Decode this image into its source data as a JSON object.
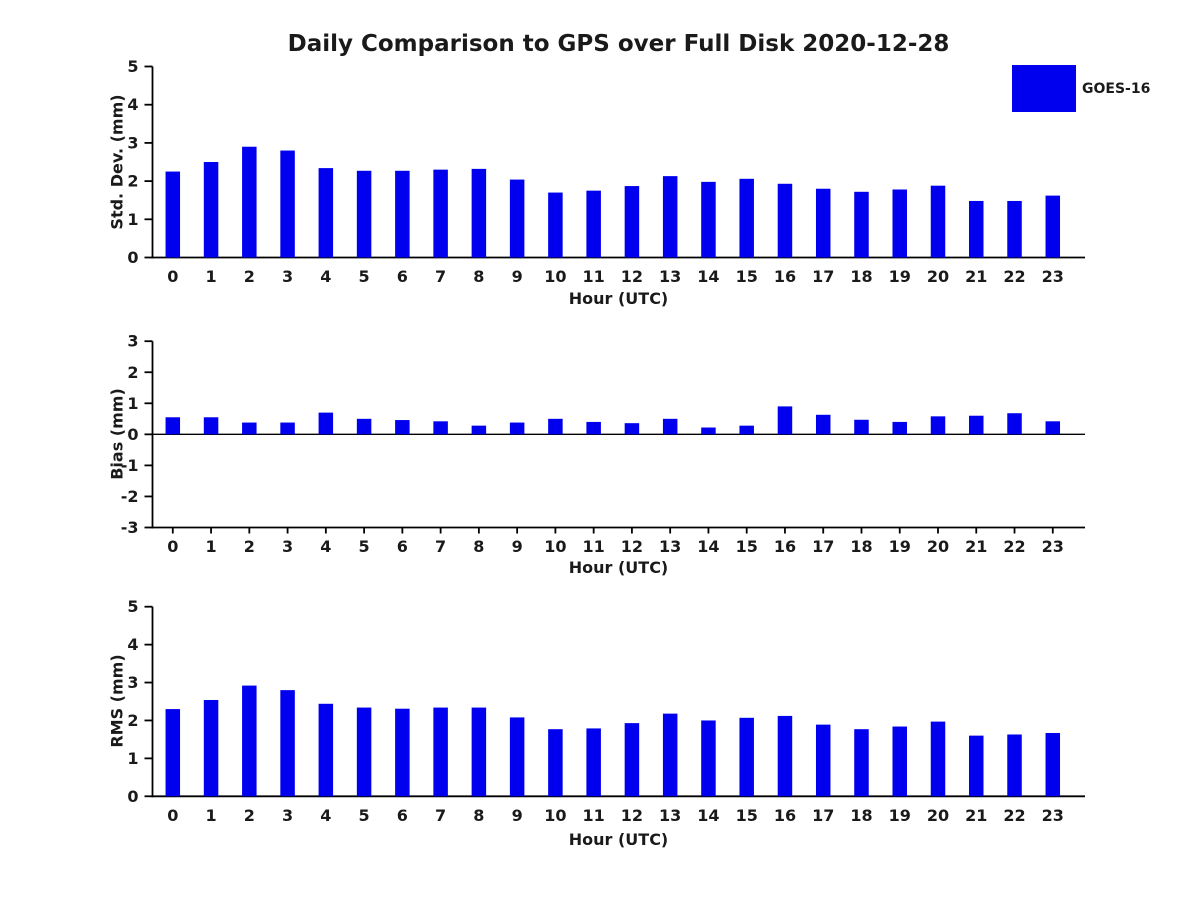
{
  "figure": {
    "title": "Daily Comparison to GPS over Full Disk 2020-12-28",
    "legend": {
      "label": "GOES-16",
      "color": "#0000ee",
      "position": "top-right"
    }
  },
  "chart_data": [
    {
      "type": "bar",
      "panel": "std-dev",
      "title": "",
      "ylabel": "Std. Dev. (mm)",
      "xlabel": "Hour (UTC)",
      "ylim": [
        0,
        5
      ],
      "yticks": [
        0,
        1,
        2,
        3,
        4,
        5
      ],
      "grid": false,
      "x_tick_marks": false,
      "zero_line": false,
      "categories": [
        "0",
        "1",
        "2",
        "3",
        "4",
        "5",
        "6",
        "7",
        "8",
        "9",
        "10",
        "11",
        "12",
        "13",
        "14",
        "15",
        "16",
        "17",
        "18",
        "19",
        "20",
        "21",
        "22",
        "23"
      ],
      "series": [
        {
          "name": "GOES-16",
          "color": "#0000ee",
          "values": [
            2.25,
            2.5,
            2.9,
            2.8,
            2.34,
            2.27,
            2.27,
            2.3,
            2.32,
            2.04,
            1.7,
            1.75,
            1.87,
            2.13,
            1.98,
            2.06,
            1.93,
            1.8,
            1.72,
            1.78,
            1.88,
            1.48,
            1.48,
            1.62
          ]
        }
      ]
    },
    {
      "type": "bar",
      "panel": "bias",
      "title": "",
      "ylabel": "Bias (mm)",
      "xlabel": "Hour (UTC)",
      "ylim": [
        -3,
        3
      ],
      "yticks": [
        -3,
        -2,
        -1,
        0,
        1,
        2,
        3
      ],
      "grid": false,
      "x_tick_marks": true,
      "zero_line": true,
      "categories": [
        "0",
        "1",
        "2",
        "3",
        "4",
        "5",
        "6",
        "7",
        "8",
        "9",
        "10",
        "11",
        "12",
        "13",
        "14",
        "15",
        "16",
        "17",
        "18",
        "19",
        "20",
        "21",
        "22",
        "23"
      ],
      "series": [
        {
          "name": "GOES-16",
          "color": "#0000ee",
          "values": [
            0.55,
            0.55,
            0.38,
            0.38,
            0.7,
            0.5,
            0.46,
            0.42,
            0.28,
            0.38,
            0.5,
            0.4,
            0.36,
            0.5,
            0.22,
            0.28,
            0.9,
            0.63,
            0.47,
            0.4,
            0.58,
            0.6,
            0.68,
            0.42
          ]
        }
      ]
    },
    {
      "type": "bar",
      "panel": "rms",
      "title": "",
      "ylabel": "RMS (mm)",
      "xlabel": "Hour (UTC)",
      "ylim": [
        0,
        5
      ],
      "yticks": [
        0,
        1,
        2,
        3,
        4,
        5
      ],
      "grid": false,
      "x_tick_marks": false,
      "zero_line": false,
      "categories": [
        "0",
        "1",
        "2",
        "3",
        "4",
        "5",
        "6",
        "7",
        "8",
        "9",
        "10",
        "11",
        "12",
        "13",
        "14",
        "15",
        "16",
        "17",
        "18",
        "19",
        "20",
        "21",
        "22",
        "23"
      ],
      "series": [
        {
          "name": "GOES-16",
          "color": "#0000ee",
          "values": [
            2.3,
            2.54,
            2.92,
            2.8,
            2.44,
            2.34,
            2.31,
            2.34,
            2.34,
            2.08,
            1.77,
            1.79,
            1.93,
            2.18,
            2.0,
            2.07,
            2.12,
            1.89,
            1.77,
            1.84,
            1.97,
            1.6,
            1.63,
            1.67
          ]
        }
      ]
    }
  ]
}
